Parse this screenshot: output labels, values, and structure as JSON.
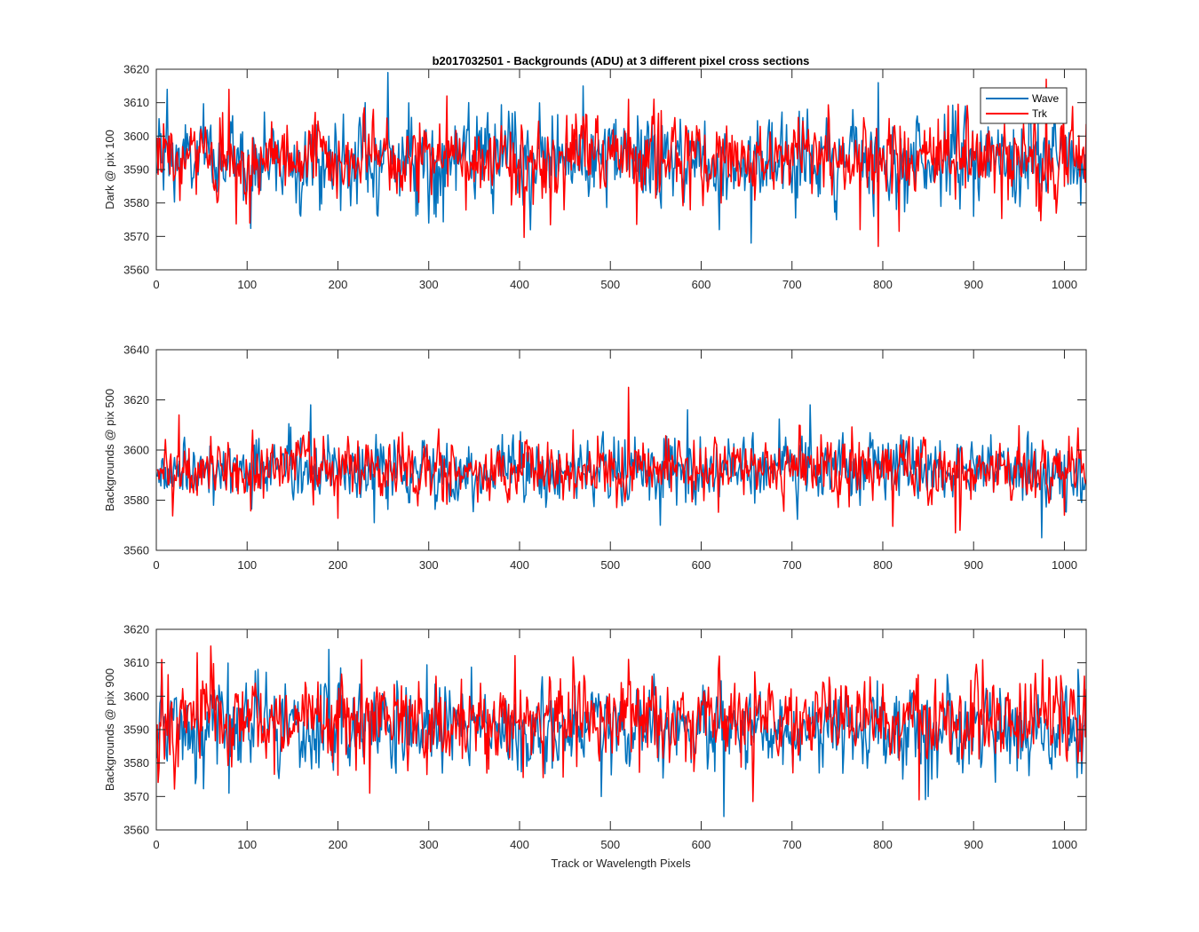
{
  "figure": {
    "title": "b2017032501 - Backgrounds (ADU) at 3 different pixel cross sections",
    "xlabel": "Track or Wavelength Pixels"
  },
  "chart_data": [
    {
      "type": "line",
      "ylabel": "Dark @ pix 100",
      "xlim": [
        0,
        1024
      ],
      "ylim": [
        3560,
        3620
      ],
      "xticks": [
        0,
        100,
        200,
        300,
        400,
        500,
        600,
        700,
        800,
        900,
        1000
      ],
      "yticks": [
        3560,
        3570,
        3580,
        3590,
        3600,
        3610,
        3620
      ],
      "legend": {
        "position": "top-right",
        "entries": [
          "Wave",
          "Trk"
        ]
      },
      "noise_summary": {
        "Wave": {
          "x_range": [
            1,
            1024
          ],
          "mean": 3593,
          "sd": 6.5,
          "max": 3619,
          "max_x": 255,
          "min": 3568,
          "min_x": 655
        },
        "Trk": {
          "x_range": [
            1,
            1024
          ],
          "mean": 3593,
          "sd": 6.5,
          "max": 3617,
          "max_x": 980,
          "min": 3567,
          "min_x": 795
        }
      },
      "series": [
        {
          "name": "Wave",
          "color": "#0072BD",
          "x_range": [
            1,
            1024
          ],
          "mean": 3593,
          "amplitude": 6.5,
          "spikes": [
            [
              12,
              3614
            ],
            [
              255,
              3619
            ],
            [
              230,
              3610
            ],
            [
              470,
              3615
            ],
            [
              795,
              3616
            ],
            [
              655,
              3568
            ],
            [
              300,
              3574
            ],
            [
              620,
              3572
            ],
            [
              900,
              3576
            ]
          ]
        },
        {
          "name": "Trk",
          "color": "#FF0000",
          "x_range": [
            1,
            1024
          ],
          "mean": 3593,
          "amplitude": 6.0,
          "spikes": [
            [
              80,
              3614
            ],
            [
              980,
              3617
            ],
            [
              103,
              3574
            ],
            [
              795,
              3567
            ],
            [
              775,
              3572
            ],
            [
              320,
              3612
            ],
            [
              520,
              3611
            ]
          ]
        }
      ]
    },
    {
      "type": "line",
      "ylabel": "Backgrounds @ pix 500",
      "xlim": [
        0,
        1024
      ],
      "ylim": [
        3560,
        3640
      ],
      "xticks": [
        0,
        100,
        200,
        300,
        400,
        500,
        600,
        700,
        800,
        900,
        1000
      ],
      "yticks": [
        3560,
        3580,
        3600,
        3620,
        3640
      ],
      "series": [
        {
          "name": "Wave",
          "color": "#0072BD",
          "x_range": [
            1,
            1024
          ],
          "mean": 3592,
          "amplitude": 6.5,
          "spikes": [
            [
              170,
              3618
            ],
            [
              720,
              3618
            ],
            [
              585,
              3616
            ],
            [
              975,
              3565
            ],
            [
              555,
              3570
            ],
            [
              240,
              3571
            ]
          ]
        },
        {
          "name": "Trk",
          "color": "#FF0000",
          "x_range": [
            1,
            1024
          ],
          "mean": 3592,
          "amplitude": 6.0,
          "spikes": [
            [
              520,
              3625
            ],
            [
              25,
              3614
            ],
            [
              880,
              3567
            ],
            [
              885,
              3568
            ],
            [
              1000,
              3574
            ]
          ]
        }
      ]
    },
    {
      "type": "line",
      "ylabel": "Backgrounds @ pix 900",
      "xlim": [
        0,
        1024
      ],
      "ylim": [
        3560,
        3620
      ],
      "xticks": [
        0,
        100,
        200,
        300,
        400,
        500,
        600,
        700,
        800,
        900,
        1000
      ],
      "yticks": [
        3560,
        3570,
        3580,
        3590,
        3600,
        3610,
        3620
      ],
      "series": [
        {
          "name": "Wave",
          "color": "#0072BD",
          "x_range": [
            1,
            1024
          ],
          "mean": 3590,
          "amplitude": 6.5,
          "spikes": [
            [
              190,
              3614
            ],
            [
              625,
              3564
            ],
            [
              490,
              3570
            ],
            [
              80,
              3571
            ],
            [
              850,
              3570
            ],
            [
              1015,
              3608
            ]
          ]
        },
        {
          "name": "Trk",
          "color": "#FF0000",
          "x_range": [
            1,
            1024
          ],
          "mean": 3593,
          "amplitude": 6.5,
          "spikes": [
            [
              60,
              3615
            ],
            [
              620,
              3612
            ],
            [
              520,
              3611
            ],
            [
              840,
              3569
            ],
            [
              235,
              3571
            ],
            [
              45,
              3613
            ]
          ]
        }
      ]
    }
  ]
}
